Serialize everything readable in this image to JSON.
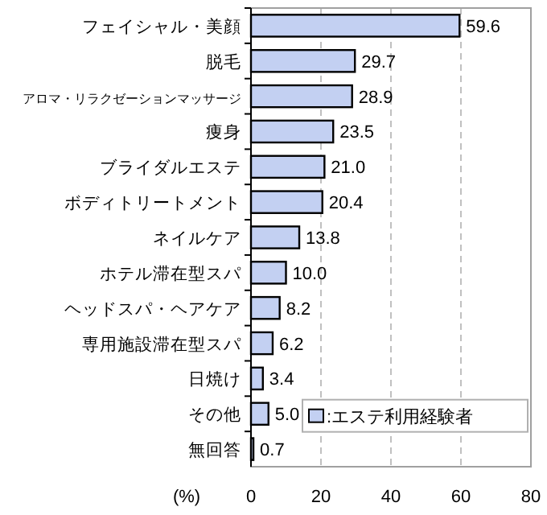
{
  "chart_data": {
    "type": "bar",
    "orientation": "horizontal",
    "categories": [
      "フェイシャル・美顔",
      "脱毛",
      "アロマ・リラクゼーションマッサージ",
      "痩身",
      "ブライダルエステ",
      "ボディトリートメント",
      "ネイルケア",
      "ホテル滞在型スパ",
      "ヘッドスパ・ヘアケア",
      "専用施設滞在型スパ",
      "日焼け",
      "その他",
      "無回答"
    ],
    "series": [
      {
        "name": ":エステ利用経験者",
        "color": "#c3d0f2",
        "values": [
          59.6,
          29.7,
          28.9,
          23.5,
          21.0,
          20.4,
          13.8,
          10.0,
          8.2,
          6.2,
          3.4,
          5.0,
          0.7
        ]
      }
    ],
    "value_labels": [
      "59.6",
      "29.7",
      "28.9",
      "23.5",
      "21.0",
      "20.4",
      "13.8",
      "10.0",
      "8.2",
      "6.2",
      "3.4",
      "5.0",
      "0.7"
    ],
    "xlim": [
      0,
      80
    ],
    "xticks": [
      0,
      20,
      40,
      60,
      80
    ],
    "xlabel": "(%)",
    "grid": "x",
    "legend": "bottom right"
  }
}
